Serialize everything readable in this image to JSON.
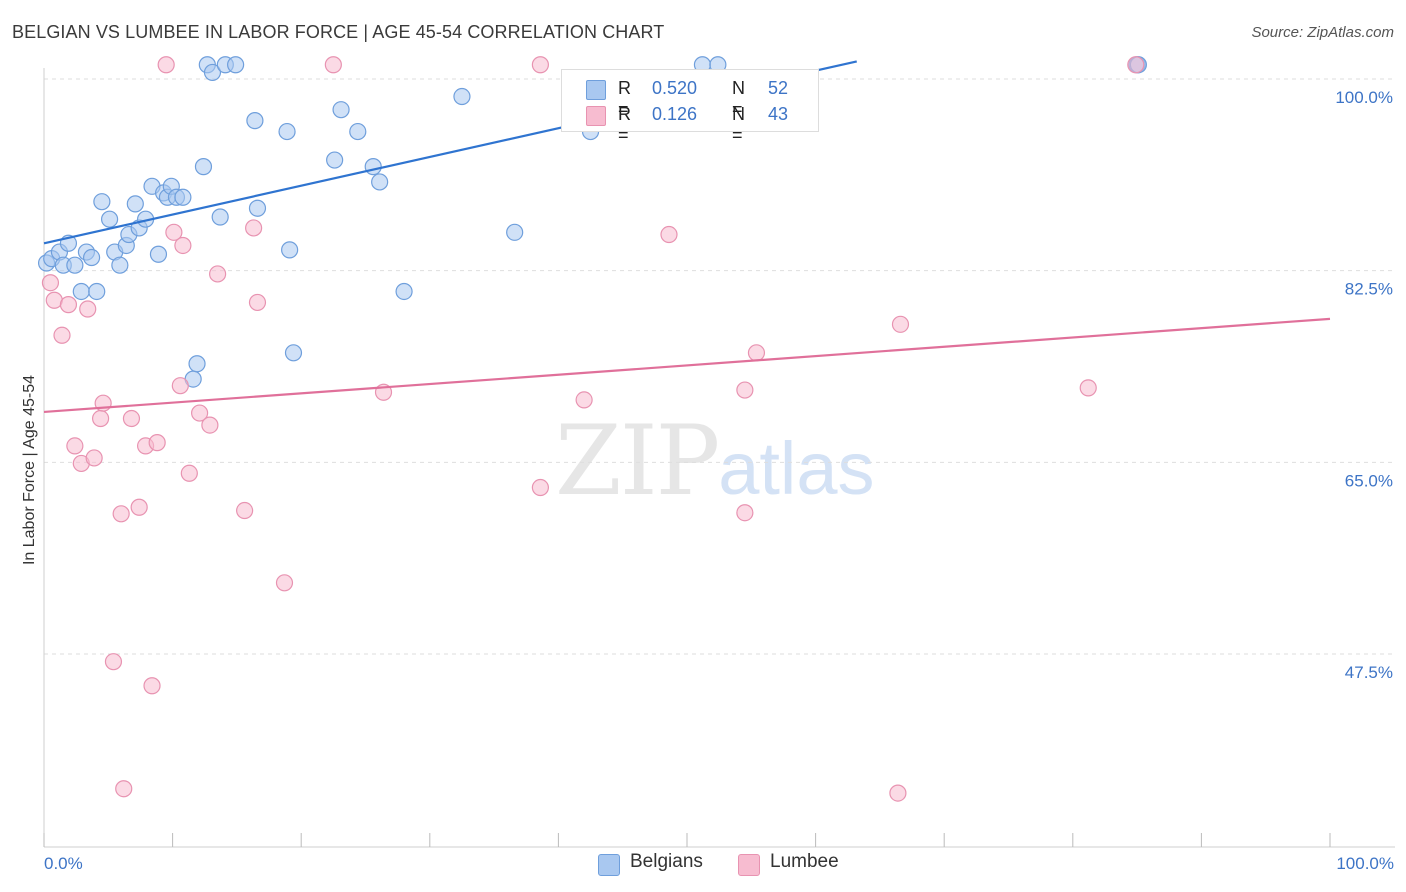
{
  "header": {
    "title": "BELGIAN VS LUMBEE IN LABOR FORCE | AGE 45-54 CORRELATION CHART",
    "source": "Source: ZipAtlas.com"
  },
  "watermark": {
    "zip": "ZIP",
    "atlas": "atlas"
  },
  "legend": {
    "rows": [
      {
        "r_label": "R =",
        "r_value": "0.520",
        "n_label": "N =",
        "n_value": "52",
        "color": "#a9c8f0"
      },
      {
        "r_label": "R =",
        "r_value": "0.126",
        "n_label": "N =",
        "n_value": "43",
        "color": "#f7bcd0"
      }
    ]
  },
  "bottom_legend": {
    "belgians": "Belgians",
    "lumbee": "Lumbee"
  },
  "chart_data": {
    "type": "scatter",
    "title": "BELGIAN VS LUMBEE IN LABOR FORCE | AGE 45-54 CORRELATION CHART",
    "xlabel": "",
    "ylabel": "In Labor Force | Age 45-54",
    "xlim": [
      0,
      100
    ],
    "ylim": [
      30,
      102
    ],
    "x_tick_labels": [
      "0.0%",
      "100.0%"
    ],
    "y_ticks": [
      47.5,
      65.0,
      82.5,
      100.0
    ],
    "y_tick_labels": [
      "47.5%",
      "65.0%",
      "82.5%",
      "100.0%"
    ],
    "grid": true,
    "series": [
      {
        "name": "Belgians",
        "color": "#a9c8f0",
        "stroke": "#6f9fdc",
        "line_color": "#2f74d0",
        "trend": {
          "x": [
            0,
            63.2
          ],
          "y": [
            85.0,
            101.6
          ]
        },
        "points": [
          [
            0.2,
            83.2
          ],
          [
            0.6,
            83.6
          ],
          [
            1.2,
            84.2
          ],
          [
            1.5,
            83.0
          ],
          [
            1.9,
            85.0
          ],
          [
            2.4,
            83.0
          ],
          [
            2.9,
            80.6
          ],
          [
            3.3,
            84.2
          ],
          [
            3.7,
            83.7
          ],
          [
            4.1,
            80.6
          ],
          [
            4.5,
            88.8
          ],
          [
            5.1,
            87.2
          ],
          [
            5.5,
            84.2
          ],
          [
            5.9,
            83.0
          ],
          [
            6.4,
            84.8
          ],
          [
            6.6,
            85.8
          ],
          [
            7.1,
            88.6
          ],
          [
            7.4,
            86.4
          ],
          [
            7.9,
            87.2
          ],
          [
            8.4,
            90.2
          ],
          [
            8.9,
            84.0
          ],
          [
            9.3,
            89.6
          ],
          [
            9.6,
            89.2
          ],
          [
            9.9,
            90.2
          ],
          [
            10.3,
            89.2
          ],
          [
            10.8,
            89.2
          ],
          [
            11.6,
            72.6
          ],
          [
            11.9,
            74.0
          ],
          [
            12.4,
            92.0
          ],
          [
            12.7,
            101.3
          ],
          [
            13.1,
            100.6
          ],
          [
            13.7,
            87.4
          ],
          [
            14.1,
            101.3
          ],
          [
            14.9,
            101.3
          ],
          [
            16.4,
            96.2
          ],
          [
            16.6,
            88.2
          ],
          [
            18.9,
            95.2
          ],
          [
            19.1,
            84.4
          ],
          [
            19.4,
            75.0
          ],
          [
            22.6,
            92.6
          ],
          [
            23.1,
            97.2
          ],
          [
            24.4,
            95.2
          ],
          [
            25.6,
            92.0
          ],
          [
            26.1,
            90.6
          ],
          [
            28.0,
            80.6
          ],
          [
            32.5,
            98.4
          ],
          [
            36.6,
            86.0
          ],
          [
            42.5,
            95.2
          ],
          [
            51.2,
            101.3
          ],
          [
            52.4,
            101.3
          ],
          [
            85.0,
            101.3
          ],
          [
            85.1,
            101.3
          ]
        ]
      },
      {
        "name": "Lumbee",
        "color": "#f7bcd0",
        "stroke": "#e893b1",
        "line_color": "#e0709a",
        "trend": {
          "x": [
            0,
            100
          ],
          "y": [
            69.6,
            78.1
          ]
        },
        "points": [
          [
            0.5,
            81.4
          ],
          [
            0.8,
            79.8
          ],
          [
            1.4,
            76.6
          ],
          [
            1.9,
            79.4
          ],
          [
            2.4,
            66.5
          ],
          [
            2.9,
            64.9
          ],
          [
            3.4,
            79.0
          ],
          [
            3.9,
            65.4
          ],
          [
            4.4,
            69.0
          ],
          [
            4.6,
            70.4
          ],
          [
            5.4,
            46.8
          ],
          [
            6.0,
            60.3
          ],
          [
            6.2,
            35.2
          ],
          [
            6.8,
            69.0
          ],
          [
            7.4,
            60.9
          ],
          [
            7.9,
            66.5
          ],
          [
            8.4,
            44.6
          ],
          [
            8.8,
            66.8
          ],
          [
            9.5,
            101.3
          ],
          [
            10.1,
            86.0
          ],
          [
            10.6,
            72.0
          ],
          [
            10.8,
            84.8
          ],
          [
            11.3,
            64.0
          ],
          [
            12.1,
            69.5
          ],
          [
            12.9,
            68.4
          ],
          [
            13.5,
            82.2
          ],
          [
            15.6,
            60.6
          ],
          [
            16.3,
            86.4
          ],
          [
            16.6,
            79.6
          ],
          [
            18.7,
            54.0
          ],
          [
            22.5,
            101.3
          ],
          [
            26.4,
            71.4
          ],
          [
            38.6,
            62.7
          ],
          [
            38.6,
            101.3
          ],
          [
            42.0,
            70.7
          ],
          [
            48.6,
            85.8
          ],
          [
            54.5,
            71.6
          ],
          [
            54.5,
            60.4
          ],
          [
            55.4,
            75.0
          ],
          [
            66.4,
            34.8
          ],
          [
            66.6,
            77.6
          ],
          [
            81.2,
            71.8
          ],
          [
            84.9,
            101.3
          ]
        ]
      }
    ]
  }
}
